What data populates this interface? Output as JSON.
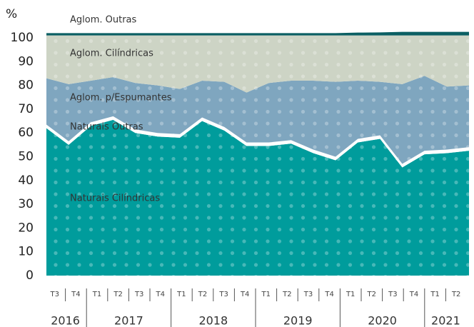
{
  "chart_data": {
    "type": "stacked_area",
    "y_label": "%",
    "categories": [
      "T3",
      "T4",
      "T1",
      "T2",
      "T3",
      "T4",
      "T1",
      "T2",
      "T3",
      "T4",
      "T1",
      "T2",
      "T3",
      "T4",
      "T1",
      "T2",
      "T3",
      "T4",
      "T1",
      "T2"
    ],
    "years": [
      "2016",
      "2017",
      "2018",
      "2019",
      "2020",
      "2021"
    ],
    "series": [
      {
        "name": "Naturais Cilíndricas",
        "color": "#009c9c",
        "values": [
          62,
          55,
          63,
          65.5,
          60,
          58.5,
          58,
          65,
          61,
          54.5,
          54.5,
          55.5,
          51.5,
          48.5,
          56,
          57.5,
          45.5,
          51,
          51.5,
          52.5
        ]
      },
      {
        "name": "Naturais Outras",
        "color": "#ffffff",
        "values": [
          1.5,
          1.5,
          1.5,
          1.5,
          1.5,
          1.5,
          1.5,
          1.5,
          1.5,
          1.5,
          1.5,
          1.5,
          1.5,
          1.5,
          1.5,
          1.5,
          1.5,
          1.5,
          1.5,
          1.5
        ]
      },
      {
        "name": "Aglom. p/Espumantes",
        "color": "#7fa6bf",
        "values": [
          19.5,
          24,
          17.5,
          16.5,
          19.5,
          20,
          19,
          15.5,
          19,
          21,
          25,
          25,
          29,
          31.5,
          24.5,
          22.5,
          33.5,
          31.5,
          26.5,
          26
        ]
      },
      {
        "name": "Aglom. Cilíndricas",
        "color": "#cdd4c5",
        "values": [
          18,
          20.5,
          19,
          17.5,
          20,
          21,
          22.5,
          19,
          19.5,
          24,
          20,
          19,
          19,
          19.5,
          19,
          19.5,
          20.5,
          17,
          21.5,
          21
        ]
      },
      {
        "name": "Aglom. Outras",
        "color": "#0b5f63",
        "values": [
          1,
          1,
          1,
          1,
          1,
          1,
          1,
          1,
          1,
          1,
          1,
          1,
          1,
          1,
          1.2,
          1.3,
          1.5,
          1.5,
          1.5,
          1.5
        ]
      }
    ],
    "ylim": [
      0,
      102.5
    ],
    "yticks": [
      0,
      10,
      20,
      30,
      40,
      50,
      60,
      70,
      80,
      90,
      100
    ]
  }
}
